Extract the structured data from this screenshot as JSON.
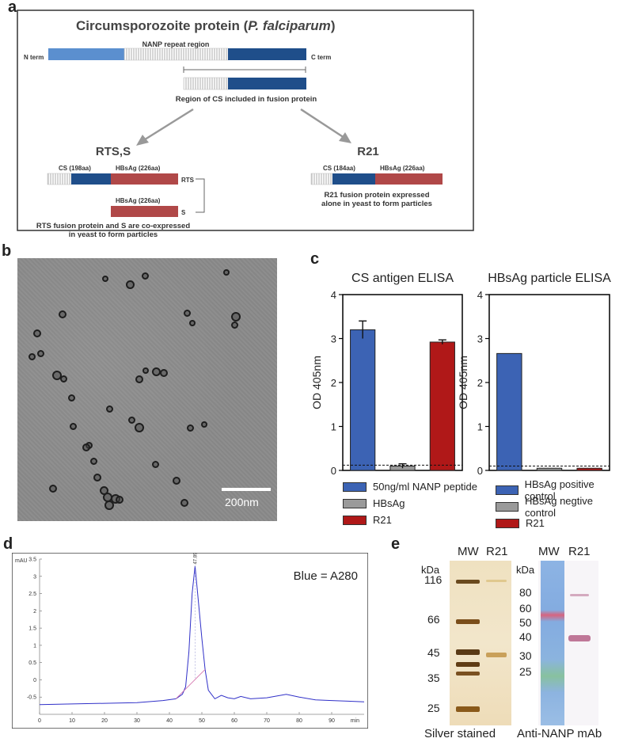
{
  "panels": {
    "a": "a",
    "b": "b",
    "c": "c",
    "d": "d",
    "e": "e"
  },
  "panel_a": {
    "title_main": "Circumsporozoite protein (",
    "title_species": "P. falciparum",
    "title_close": ")",
    "repeat_label": "NANP repeat region",
    "n_term": "N term",
    "c_term": "C term",
    "region_label": "Region of CS included in fusion protein",
    "rts_title": "RTS,S",
    "r21_title": "R21",
    "rts_cs": "CS (198aa)",
    "rts_hbsag": "HBsAg (226aa)",
    "rts_tag": "RTS",
    "s_hbsag": "HBsAg (226aa)",
    "s_tag": "S",
    "rts_caption_1": "RTS fusion protein and S are co-expressed",
    "rts_caption_2": "in yeast to form particles",
    "r21_cs": "CS (184aa)",
    "r21_hbsag": "HBsAg (226aa)",
    "r21_caption_1": "R21 fusion protein expressed",
    "r21_caption_2": "alone in yeast to form particles"
  },
  "panel_b": {
    "scale_label": "200nm"
  },
  "colors": {
    "light_blue": "#5b8fcf",
    "dark_blue": "#1f4e8a",
    "hbsag_red": "#b04848",
    "bar_blue": "#3c63b4",
    "bar_grey": "#9a9a9a",
    "bar_red": "#b01818"
  },
  "chart_data": [
    {
      "type": "bar",
      "title": "CS antigen ELISA",
      "ylabel": "OD 405nm",
      "ylim": [
        0,
        4
      ],
      "yticks": [
        "0",
        "1",
        "2",
        "3",
        "4"
      ],
      "categories": [
        "50ng/ml NANP peptide",
        "HBsAg",
        "R21"
      ],
      "values": [
        3.2,
        0.1,
        2.92
      ],
      "errors": [
        0.2,
        0.05,
        0.05
      ],
      "cutoff": 0.12,
      "colors": [
        "#3c63b4",
        "#9a9a9a",
        "#b01818"
      ]
    },
    {
      "type": "bar",
      "title": "HBsAg particle ELISA",
      "ylabel": "OD 405nm",
      "ylim": [
        0,
        4
      ],
      "yticks": [
        "0",
        "1",
        "2",
        "3",
        "4"
      ],
      "categories": [
        "HBsAg positive control",
        "HBsAg negtive control",
        "R21"
      ],
      "values": [
        2.66,
        0.05,
        0.05
      ],
      "cutoff": 0.1,
      "colors": [
        "#3c63b4",
        "#9a9a9a",
        "#b01818"
      ]
    },
    {
      "type": "line",
      "units_label": "mAU",
      "xunit": "min",
      "annotation": "Blue = A280",
      "peak_label": "47.890",
      "xlim": [
        0,
        100
      ],
      "ylim": [
        -1,
        3.5
      ],
      "xticks": [
        "0",
        "10",
        "20",
        "30",
        "40",
        "50",
        "60",
        "70",
        "80",
        "90"
      ],
      "yticks": [
        "-0.5",
        "0",
        "0.5",
        "1",
        "1.5",
        "2",
        "2.5",
        "3",
        "3.5"
      ],
      "x": [
        0,
        10,
        20,
        30,
        38,
        42,
        44,
        45,
        46,
        47,
        47.9,
        49,
        50,
        51,
        52,
        54,
        56,
        58,
        60,
        62,
        65,
        70,
        76,
        80,
        85,
        90,
        95,
        100
      ],
      "y": [
        -0.72,
        -0.7,
        -0.68,
        -0.66,
        -0.6,
        -0.55,
        -0.42,
        -0.2,
        0.8,
        2.5,
        3.3,
        2.2,
        1.2,
        0.3,
        -0.3,
        -0.55,
        -0.45,
        -0.52,
        -0.55,
        -0.48,
        -0.55,
        -0.52,
        -0.42,
        -0.5,
        -0.58,
        -0.6,
        -0.62,
        -0.64
      ]
    }
  ],
  "panel_e": {
    "kda": "kDa",
    "mw": "MW",
    "r21": "R21",
    "silver_markers": [
      "116",
      "66",
      "45",
      "35",
      "25"
    ],
    "western_markers": [
      "80",
      "60",
      "50",
      "40",
      "30",
      "25"
    ],
    "silver_label": "Silver stained",
    "western_label": "Anti-NANP mAb"
  }
}
